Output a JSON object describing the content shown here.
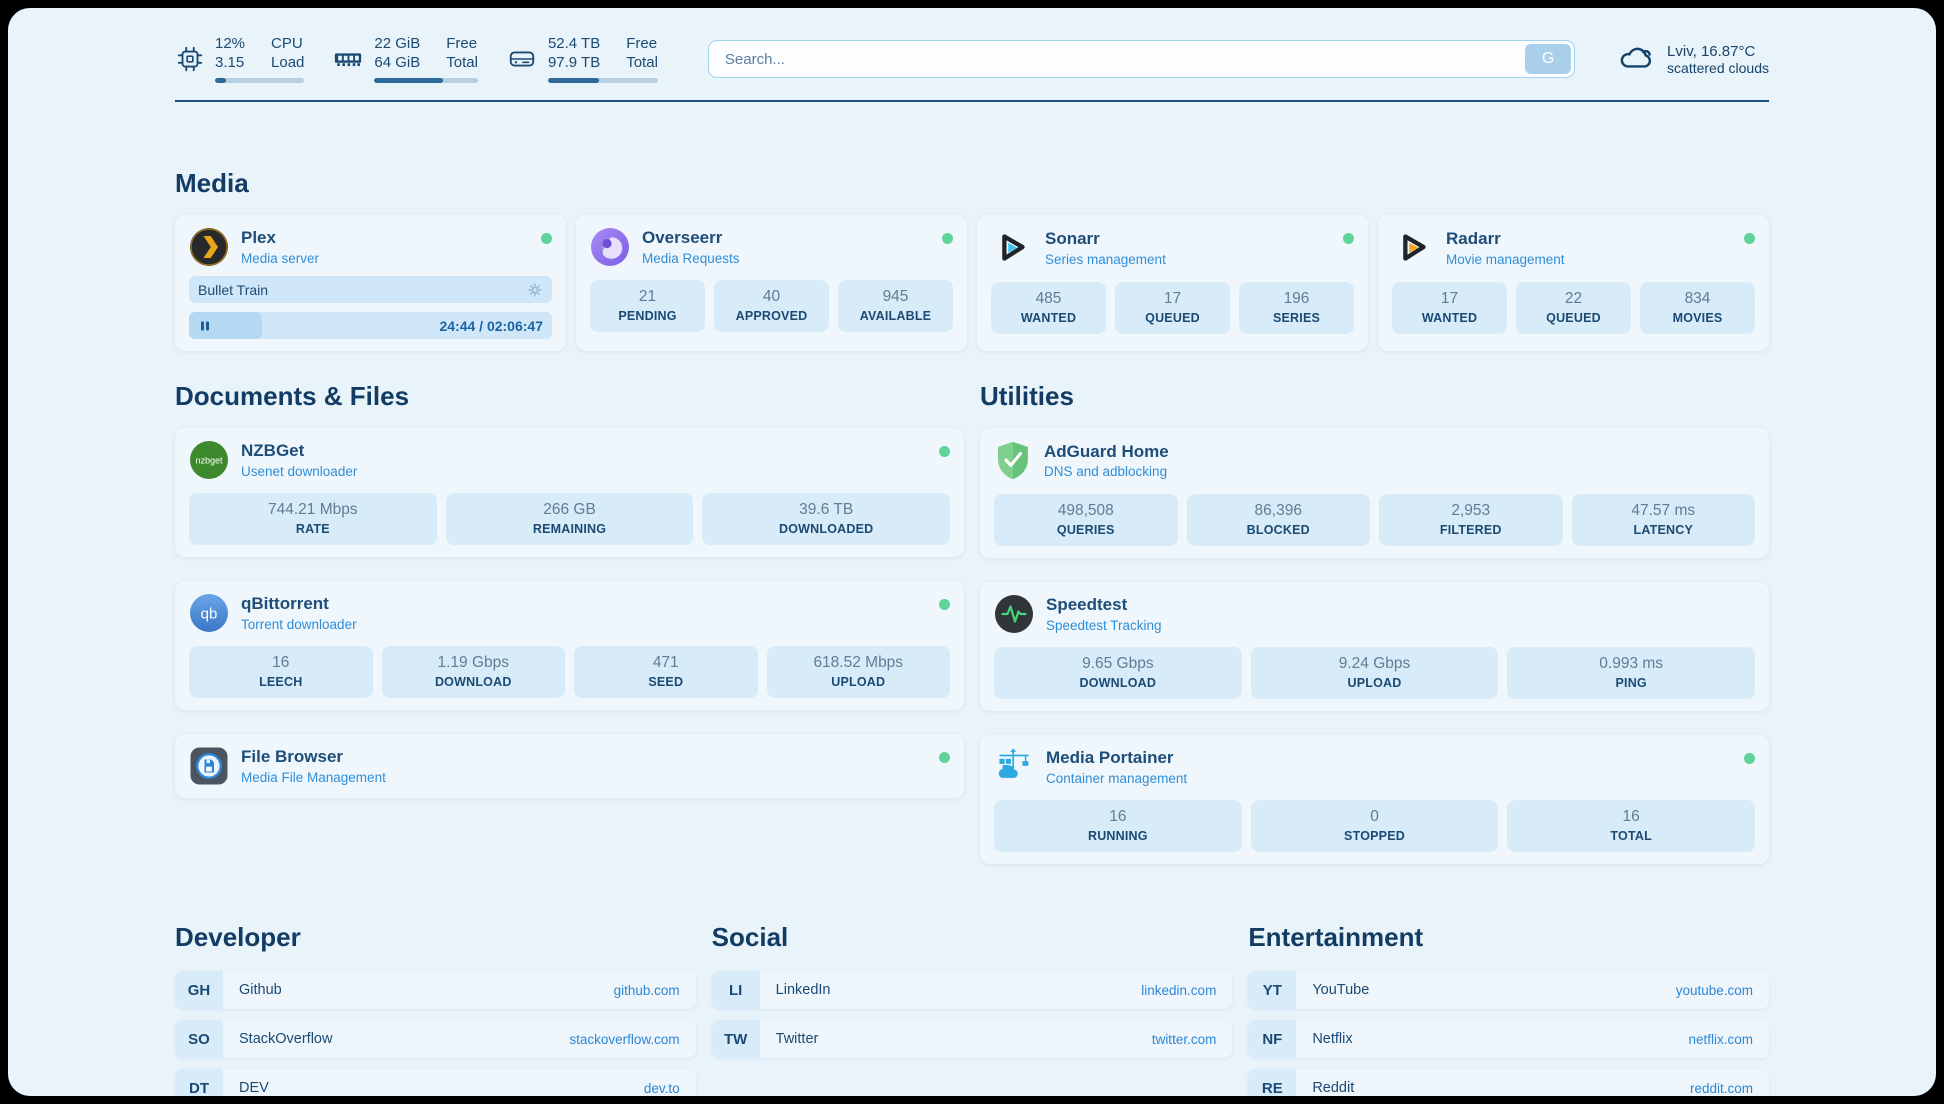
{
  "topbar": {
    "stats": [
      {
        "values": [
          "12%",
          "3.15"
        ],
        "labels": [
          "CPU",
          "Load"
        ],
        "progress": 12
      },
      {
        "values": [
          "22 GiB",
          "64 GiB"
        ],
        "labels": [
          "Free",
          "Total"
        ],
        "progress": 66
      },
      {
        "values": [
          "52.4 TB",
          "97.9 TB"
        ],
        "labels": [
          "Free",
          "Total"
        ],
        "progress": 46
      }
    ],
    "search": {
      "placeholder": "Search...",
      "button": "G"
    },
    "weather": {
      "location": "Lviv, 16.87°C",
      "condition": "scattered clouds"
    }
  },
  "media": {
    "heading": "Media",
    "plex": {
      "title": "Plex",
      "subtitle": "Media server",
      "now_playing": "Bullet Train",
      "time": "24:44 / 02:06:47",
      "progress": 20
    },
    "cards": [
      {
        "title": "Overseerr",
        "subtitle": "Media Requests",
        "stats": [
          {
            "value": "21",
            "label": "PENDING"
          },
          {
            "value": "40",
            "label": "APPROVED"
          },
          {
            "value": "945",
            "label": "AVAILABLE"
          }
        ]
      },
      {
        "title": "Sonarr",
        "subtitle": "Series management",
        "stats": [
          {
            "value": "485",
            "label": "WANTED"
          },
          {
            "value": "17",
            "label": "QUEUED"
          },
          {
            "value": "196",
            "label": "SERIES"
          }
        ]
      },
      {
        "title": "Radarr",
        "subtitle": "Movie management",
        "stats": [
          {
            "value": "17",
            "label": "WANTED"
          },
          {
            "value": "22",
            "label": "QUEUED"
          },
          {
            "value": "834",
            "label": "MOVIES"
          }
        ]
      }
    ]
  },
  "documents": {
    "heading": "Documents & Files",
    "cards": [
      {
        "title": "NZBGet",
        "subtitle": "Usenet downloader",
        "stats": [
          {
            "value": "744.21 Mbps",
            "label": "RATE"
          },
          {
            "value": "266 GB",
            "label": "REMAINING"
          },
          {
            "value": "39.6 TB",
            "label": "DOWNLOADED"
          }
        ]
      },
      {
        "title": "qBittorrent",
        "subtitle": "Torrent downloader",
        "stats": [
          {
            "value": "16",
            "label": "LEECH"
          },
          {
            "value": "1.19 Gbps",
            "label": "DOWNLOAD"
          },
          {
            "value": "471",
            "label": "SEED"
          },
          {
            "value": "618.52 Mbps",
            "label": "UPLOAD"
          }
        ]
      },
      {
        "title": "File Browser",
        "subtitle": "Media File Management",
        "stats": []
      }
    ]
  },
  "utilities": {
    "heading": "Utilities",
    "cards": [
      {
        "title": "AdGuard Home",
        "subtitle": "DNS and adblocking",
        "stats": [
          {
            "value": "498,508",
            "label": "QUERIES"
          },
          {
            "value": "86,396",
            "label": "BLOCKED"
          },
          {
            "value": "2,953",
            "label": "FILTERED"
          },
          {
            "value": "47.57 ms",
            "label": "LATENCY"
          }
        ]
      },
      {
        "title": "Speedtest",
        "subtitle": "Speedtest Tracking",
        "stats": [
          {
            "value": "9.65 Gbps",
            "label": "DOWNLOAD"
          },
          {
            "value": "9.24 Gbps",
            "label": "UPLOAD"
          },
          {
            "value": "0.993 ms",
            "label": "PING"
          }
        ]
      },
      {
        "title": "Media Portainer",
        "subtitle": "Container management",
        "stats": [
          {
            "value": "16",
            "label": "RUNNING"
          },
          {
            "value": "0",
            "label": "STOPPED"
          },
          {
            "value": "16",
            "label": "TOTAL"
          }
        ]
      }
    ]
  },
  "bookmarks": [
    {
      "heading": "Developer",
      "links": [
        {
          "abbr": "GH",
          "name": "Github",
          "url": "github.com"
        },
        {
          "abbr": "SO",
          "name": "StackOverflow",
          "url": "stackoverflow.com"
        },
        {
          "abbr": "DT",
          "name": "DEV",
          "url": "dev.to"
        }
      ]
    },
    {
      "heading": "Social",
      "links": [
        {
          "abbr": "LI",
          "name": "LinkedIn",
          "url": "linkedin.com"
        },
        {
          "abbr": "TW",
          "name": "Twitter",
          "url": "twitter.com"
        }
      ]
    },
    {
      "heading": "Entertainment",
      "links": [
        {
          "abbr": "YT",
          "name": "YouTube",
          "url": "youtube.com"
        },
        {
          "abbr": "NF",
          "name": "Netflix",
          "url": "netflix.com"
        },
        {
          "abbr": "RE",
          "name": "Reddit",
          "url": "reddit.com"
        }
      ]
    }
  ],
  "branding": {
    "nzbget_icon_text": "nzbget",
    "qb_icon_text": "qb"
  },
  "colors": {
    "background": "#e9f3fa",
    "accent": "#2e86d1",
    "navy": "#1b4a73",
    "status_online": "#5ed39a",
    "stat_box": "#d7ebf8",
    "progress_fill": "#2d6a99"
  }
}
